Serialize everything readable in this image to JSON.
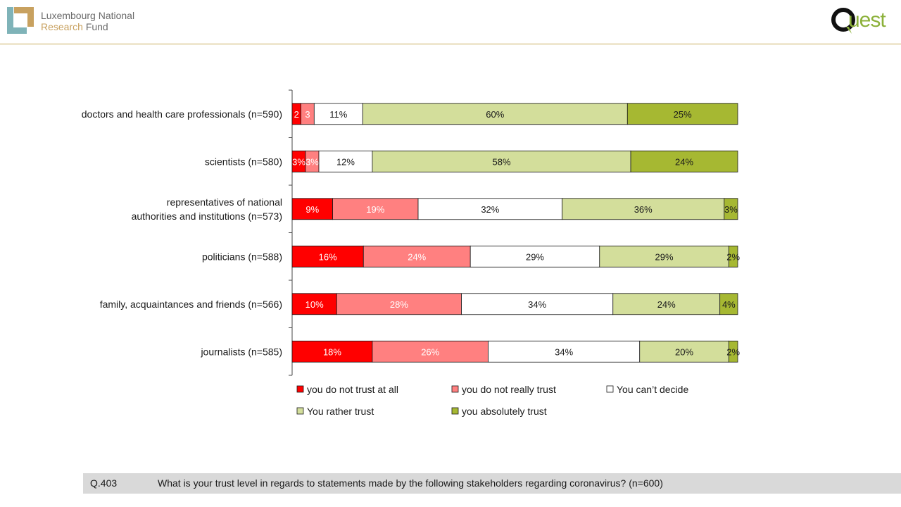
{
  "header": {
    "org_line1": "Luxembourg National",
    "org_line2_word1": "Research",
    "org_line2_word2": "Fund",
    "partner_logo_text": "uest"
  },
  "chart_data": {
    "type": "bar",
    "orientation": "horizontal",
    "stacked": true,
    "categories": [
      "doctors and health care professionals (n=590)",
      "scientists (n=580)",
      "representatives of national authorities and institutions (n=573)",
      "politicians (n=588)",
      "family, acquaintances and friends (n=566)",
      "journalists (n=585)"
    ],
    "category_lines": [
      [
        "doctors and health care professionals (n=590)"
      ],
      [
        "scientists (n=580)"
      ],
      [
        "representatives of national",
        "authorities and institutions (n=573)"
      ],
      [
        "politicians (n=588)"
      ],
      [
        "family, acquaintances and friends (n=566)"
      ],
      [
        "journalists (n=585)"
      ]
    ],
    "series": [
      {
        "name": "you do not trust at all",
        "color": "#ff0000",
        "text_color": "#ffffff",
        "values": [
          2,
          3,
          9,
          16,
          10,
          18
        ],
        "labels": [
          "2",
          "3%",
          "9%",
          "16%",
          "10%",
          "18%"
        ]
      },
      {
        "name": "you do not really trust",
        "color": "#ff8080",
        "text_color": "#ffffff",
        "values": [
          3,
          3,
          19,
          24,
          28,
          26
        ],
        "labels": [
          "3",
          "3%",
          "19%",
          "24%",
          "28%",
          "26%"
        ]
      },
      {
        "name": "You can’t decide",
        "color": "#ffffff",
        "text_color": "#1a1a1a",
        "values": [
          11,
          12,
          32,
          29,
          34,
          34
        ],
        "labels": [
          "11%",
          "12%",
          "32%",
          "29%",
          "34%",
          "34%"
        ]
      },
      {
        "name": "You rather trust",
        "color": "#d3de9b",
        "text_color": "#1a1a1a",
        "values": [
          60,
          58,
          36,
          29,
          24,
          20
        ],
        "labels": [
          "60%",
          "58%",
          "36%",
          "29%",
          "24%",
          "20%"
        ]
      },
      {
        "name": "you absolutely trust",
        "color": "#a6b832",
        "text_color": "#1a1a1a",
        "values": [
          25,
          24,
          3,
          2,
          4,
          2
        ],
        "labels": [
          "25%",
          "24%",
          "3%",
          "2%",
          "4%",
          "2%"
        ]
      }
    ],
    "legend_position": "bottom",
    "grid": false
  },
  "footer": {
    "question_id": "Q.403",
    "question_text": "What is your trust level in regards to statements made by the following stakeholders regarding coronavirus? (n=600)"
  }
}
